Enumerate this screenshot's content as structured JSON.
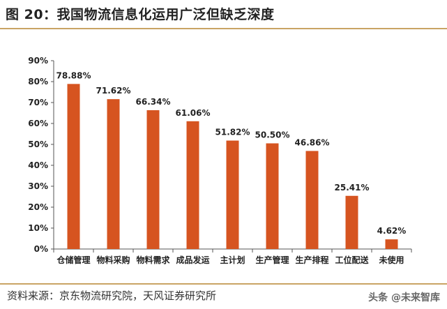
{
  "title": "图 20：我国物流信息化运用广泛但缺乏深度",
  "source": "资料来源：京东物流研究院，天风证券研究所",
  "watermark": "头条 @未来智库",
  "colors": {
    "bar": "#d65420",
    "rule": "#c9a464"
  },
  "chart_data": {
    "type": "bar",
    "categories": [
      "仓储管理",
      "物料采购",
      "物料需求",
      "成品发运",
      "主计划",
      "生产管理",
      "生产排程",
      "工位配送",
      "未使用"
    ],
    "values": [
      78.88,
      71.62,
      66.34,
      61.06,
      51.82,
      50.5,
      46.86,
      25.41,
      4.62
    ],
    "data_labels": [
      "78.88%",
      "71.62%",
      "66.34%",
      "61.06%",
      "51.82%",
      "50.50%",
      "46.86%",
      "25.41%",
      "4.62%"
    ],
    "yticks": [
      "0%",
      "10%",
      "20%",
      "30%",
      "40%",
      "50%",
      "60%",
      "70%",
      "80%",
      "90%"
    ],
    "ylim": [
      0,
      90
    ],
    "grid": false,
    "legend": "none"
  }
}
